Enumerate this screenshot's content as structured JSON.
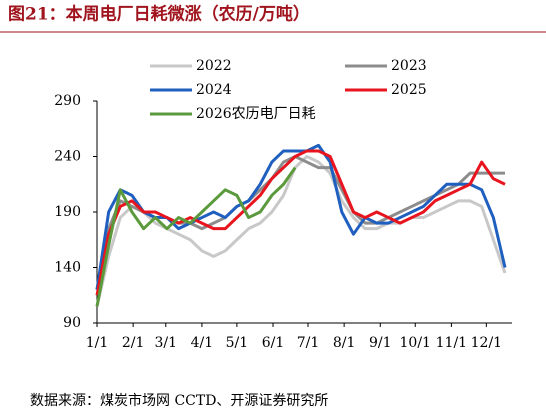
{
  "chart_data": {
    "type": "line",
    "title": "图21：本周电厂日耗微涨（农历/万吨）",
    "source": "数据来源：煤炭市场网 CCTD、开源证券研究所",
    "x": [
      1,
      11,
      21,
      31,
      41,
      51,
      61,
      71,
      81,
      91,
      101,
      111,
      121,
      131,
      141,
      151,
      161,
      171,
      181,
      191,
      201,
      211,
      221,
      231,
      241,
      251,
      261,
      271,
      281,
      291,
      301,
      311,
      321,
      331,
      341,
      351
    ],
    "xlim": [
      1,
      357
    ],
    "xticks": [
      {
        "value": 1,
        "label": "1/1"
      },
      {
        "value": 32,
        "label": "2/1"
      },
      {
        "value": 60,
        "label": "3/1"
      },
      {
        "value": 91,
        "label": "4/1"
      },
      {
        "value": 121,
        "label": "5/1"
      },
      {
        "value": 152,
        "label": "6/1"
      },
      {
        "value": 182,
        "label": "7/1"
      },
      {
        "value": 213,
        "label": "8/1"
      },
      {
        "value": 244,
        "label": "9/1"
      },
      {
        "value": 274,
        "label": "10/1"
      },
      {
        "value": 305,
        "label": "11/1"
      },
      {
        "value": 335,
        "label": "12/1"
      }
    ],
    "ylim": [
      90,
      290
    ],
    "yticks": [
      90,
      140,
      190,
      240,
      290
    ],
    "series": [
      {
        "name": "2022",
        "color": "#c8c8c8",
        "values": [
          105,
          150,
          185,
          195,
          190,
          180,
          175,
          170,
          165,
          155,
          150,
          155,
          165,
          175,
          180,
          190,
          205,
          230,
          240,
          235,
          225,
          200,
          185,
          175,
          175,
          180,
          180,
          185,
          185,
          190,
          195,
          200,
          200,
          195,
          165,
          135
        ]
      },
      {
        "name": "2023",
        "color": "#8c8c8c",
        "values": [
          120,
          175,
          200,
          195,
          190,
          185,
          185,
          180,
          180,
          175,
          180,
          185,
          195,
          200,
          210,
          220,
          235,
          240,
          235,
          230,
          230,
          210,
          190,
          180,
          180,
          185,
          190,
          195,
          200,
          205,
          210,
          215,
          225,
          225,
          225,
          225
        ]
      },
      {
        "name": "2024",
        "color": "#1f5fbf",
        "values": [
          120,
          190,
          210,
          205,
          190,
          185,
          185,
          175,
          180,
          185,
          190,
          185,
          195,
          200,
          215,
          235,
          245,
          245,
          245,
          250,
          235,
          190,
          170,
          185,
          180,
          180,
          185,
          190,
          195,
          205,
          215,
          215,
          215,
          210,
          185,
          140
        ]
      },
      {
        "name": "2025",
        "color": "#e8141e",
        "values": [
          115,
          170,
          195,
          200,
          190,
          190,
          185,
          180,
          185,
          180,
          175,
          175,
          185,
          195,
          205,
          220,
          230,
          240,
          245,
          245,
          240,
          215,
          190,
          185,
          190,
          185,
          180,
          185,
          190,
          200,
          205,
          210,
          215,
          235,
          220,
          215
        ]
      },
      {
        "name": "2026农历电厂日耗",
        "color": "#5a9a3c",
        "values": [
          105,
          160,
          210,
          190,
          175,
          185,
          175,
          185,
          180,
          190,
          200,
          210,
          205,
          185,
          190,
          205,
          215,
          230,
          null,
          null,
          null,
          null,
          null,
          null,
          null,
          null,
          null,
          null,
          null,
          null,
          null,
          null,
          null,
          null,
          null,
          null
        ]
      }
    ]
  }
}
